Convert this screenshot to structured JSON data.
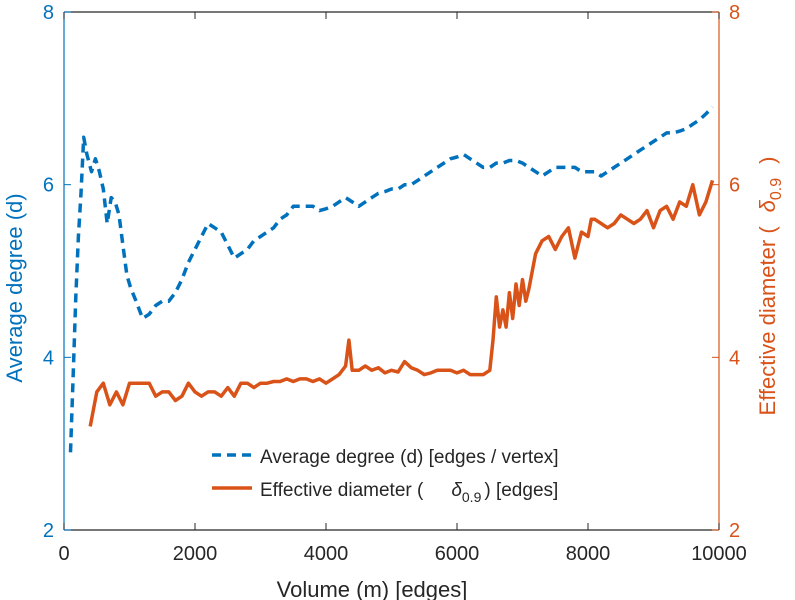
{
  "chart_data": {
    "type": "line",
    "xlabel": "Volume (m) [edges]",
    "ylabel_left": "Average degree (d)",
    "ylabel_right_prefix": "Effective diameter (",
    "ylabel_right_symbol": "δ",
    "ylabel_right_subscript": "0.9",
    "ylabel_right_suffix": ")",
    "xlim": [
      0,
      10000
    ],
    "ylim_left": [
      2,
      8
    ],
    "ylim_right": [
      2,
      8
    ],
    "xticks": [
      "0",
      "2000",
      "4000",
      "6000",
      "8000",
      "10000"
    ],
    "xtick_values": [
      0,
      2000,
      4000,
      6000,
      8000,
      10000
    ],
    "yticks_left": [
      "2",
      "4",
      "6",
      "8"
    ],
    "yticks_right": [
      "2",
      "4",
      "6",
      "8"
    ],
    "ytick_values": [
      2,
      4,
      6,
      8
    ],
    "colors": {
      "left": "#0072BD",
      "right": "#D95319",
      "axis_text": "#262626"
    },
    "legend_position": "bottom-center",
    "series": [
      {
        "name": "Average degree (d) [edges / vertex]",
        "legend_label": "Average degree (d) [edges / vertex]",
        "style": "dashed",
        "axis": "left",
        "color": "#0072BD",
        "x": [
          100,
          140,
          180,
          220,
          260,
          300,
          350,
          420,
          480,
          540,
          600,
          660,
          720,
          780,
          840,
          900,
          960,
          1020,
          1100,
          1200,
          1300,
          1400,
          1500,
          1600,
          1700,
          1800,
          1900,
          2000,
          2100,
          2200,
          2300,
          2400,
          2500,
          2600,
          2700,
          2800,
          2900,
          3000,
          3100,
          3200,
          3300,
          3400,
          3500,
          3600,
          3700,
          3800,
          3900,
          4000,
          4100,
          4200,
          4300,
          4400,
          4500,
          4600,
          4700,
          4800,
          4900,
          5000,
          5100,
          5200,
          5300,
          5400,
          5500,
          5600,
          5700,
          5800,
          5900,
          6000,
          6100,
          6200,
          6300,
          6400,
          6500,
          6600,
          6700,
          6800,
          6900,
          7000,
          7100,
          7200,
          7300,
          7400,
          7500,
          7600,
          7700,
          7800,
          7900,
          8000,
          8100,
          8200,
          8300,
          8400,
          8500,
          8600,
          8700,
          8800,
          8900,
          9000,
          9100,
          9200,
          9300,
          9400,
          9500,
          9600,
          9700,
          9800,
          9900
        ],
        "y": [
          2.9,
          3.8,
          4.7,
          5.4,
          5.9,
          6.55,
          6.35,
          6.15,
          6.3,
          6.15,
          5.95,
          5.55,
          5.85,
          5.8,
          5.65,
          5.3,
          4.95,
          4.8,
          4.65,
          4.45,
          4.5,
          4.6,
          4.65,
          4.65,
          4.75,
          4.9,
          5.1,
          5.25,
          5.4,
          5.55,
          5.5,
          5.45,
          5.3,
          5.15,
          5.2,
          5.25,
          5.35,
          5.4,
          5.45,
          5.5,
          5.6,
          5.65,
          5.75,
          5.75,
          5.75,
          5.75,
          5.7,
          5.72,
          5.75,
          5.8,
          5.85,
          5.8,
          5.75,
          5.8,
          5.85,
          5.9,
          5.92,
          5.95,
          5.95,
          6.0,
          6.0,
          6.05,
          6.1,
          6.15,
          6.2,
          6.25,
          6.3,
          6.32,
          6.35,
          6.3,
          6.25,
          6.2,
          6.2,
          6.25,
          6.25,
          6.28,
          6.28,
          6.25,
          6.2,
          6.15,
          6.1,
          6.15,
          6.2,
          6.2,
          6.2,
          6.2,
          6.15,
          6.15,
          6.15,
          6.1,
          6.15,
          6.2,
          6.25,
          6.3,
          6.35,
          6.4,
          6.45,
          6.5,
          6.55,
          6.6,
          6.6,
          6.62,
          6.65,
          6.7,
          6.75,
          6.82,
          6.9
        ]
      },
      {
        "name": "Effective diameter (δ0.9) [edges]",
        "legend_prefix": "Effective diameter (",
        "legend_symbol": "δ",
        "legend_subscript": "0.9",
        "legend_suffix": ") [edges]",
        "style": "solid",
        "axis": "right",
        "color": "#D95319",
        "x": [
          400,
          500,
          600,
          700,
          800,
          900,
          1000,
          1100,
          1200,
          1300,
          1400,
          1500,
          1600,
          1700,
          1800,
          1900,
          2000,
          2100,
          2200,
          2300,
          2400,
          2500,
          2600,
          2700,
          2800,
          2900,
          3000,
          3100,
          3200,
          3300,
          3400,
          3500,
          3600,
          3700,
          3800,
          3900,
          4000,
          4100,
          4200,
          4300,
          4350,
          4400,
          4500,
          4600,
          4700,
          4800,
          4900,
          5000,
          5100,
          5200,
          5300,
          5400,
          5500,
          5600,
          5700,
          5800,
          5900,
          6000,
          6100,
          6200,
          6300,
          6400,
          6500,
          6550,
          6600,
          6650,
          6700,
          6750,
          6800,
          6850,
          6900,
          6950,
          7000,
          7050,
          7100,
          7200,
          7300,
          7400,
          7500,
          7600,
          7700,
          7800,
          7900,
          8000,
          8050,
          8100,
          8200,
          8300,
          8400,
          8500,
          8600,
          8700,
          8800,
          8900,
          9000,
          9100,
          9200,
          9300,
          9400,
          9500,
          9600,
          9700,
          9800,
          9900
        ],
        "y": [
          3.2,
          3.6,
          3.7,
          3.45,
          3.6,
          3.45,
          3.7,
          3.7,
          3.7,
          3.7,
          3.55,
          3.6,
          3.6,
          3.5,
          3.55,
          3.7,
          3.6,
          3.55,
          3.6,
          3.6,
          3.55,
          3.65,
          3.55,
          3.7,
          3.7,
          3.65,
          3.7,
          3.7,
          3.72,
          3.72,
          3.75,
          3.72,
          3.75,
          3.75,
          3.72,
          3.75,
          3.7,
          3.75,
          3.8,
          3.9,
          4.2,
          3.85,
          3.85,
          3.9,
          3.85,
          3.88,
          3.82,
          3.85,
          3.83,
          3.95,
          3.88,
          3.85,
          3.8,
          3.82,
          3.85,
          3.85,
          3.85,
          3.82,
          3.85,
          3.8,
          3.8,
          3.8,
          3.85,
          4.2,
          4.7,
          4.35,
          4.55,
          4.35,
          4.75,
          4.45,
          4.85,
          4.6,
          4.9,
          4.65,
          4.8,
          5.2,
          5.35,
          5.4,
          5.25,
          5.4,
          5.5,
          5.15,
          5.45,
          5.4,
          5.6,
          5.6,
          5.55,
          5.5,
          5.55,
          5.65,
          5.6,
          5.55,
          5.6,
          5.7,
          5.5,
          5.7,
          5.75,
          5.6,
          5.8,
          5.75,
          6.0,
          5.65,
          5.8,
          6.05
        ]
      }
    ]
  }
}
